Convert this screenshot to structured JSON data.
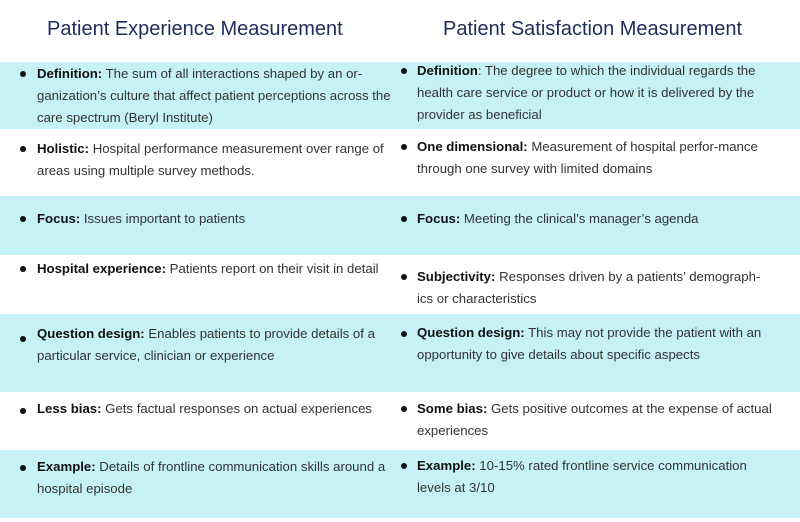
{
  "titles": {
    "left": "Patient Experience Measurement",
    "right": "Patient Satisfaction Measurement"
  },
  "rows": [
    {
      "left": {
        "term": "Definition:",
        "text": " The sum of all interactions shaped by an or-ganization’s culture that affect patient perceptions across the care spectrum (Beryl Institute)"
      },
      "right": {
        "term": "Definition",
        "text": ": The degree to which the individual regards the health care service or product or how it is delivered by the provider as beneficial"
      }
    },
    {
      "left": {
        "term": "Holistic:",
        "text": " Hospital performance measurement over range of areas using multiple survey methods."
      },
      "right": {
        "term": "One dimensional:",
        "text": " Measurement of hospital perfor-mance through one survey with limited domains"
      }
    },
    {
      "left": {
        "term": "Focus:",
        "text": " Issues important to patients"
      },
      "right": {
        "term": "Focus:",
        "text": " Meeting the clinical’s manager’s agenda"
      }
    },
    {
      "left": {
        "term": "Hospital experience:",
        "text": " Patients report on their visit in detail"
      },
      "right": {
        "term": "Subjectivity:",
        "text": " Responses driven by a patients’ demograph-ics or characteristics"
      }
    },
    {
      "left": {
        "term": "Question design:",
        "text": " Enables patients to provide details of a particular service, clinician or experience"
      },
      "right": {
        "term": "Question design:",
        "text": " This may not provide the patient with an opportunity to give details about specific aspects"
      }
    },
    {
      "left": {
        "term": "Less bias:",
        "text": " Gets factual responses on actual experiences"
      },
      "right": {
        "term": "Some bias:",
        "text": " Gets positive outcomes at the expense of actual experiences"
      }
    },
    {
      "left": {
        "term": "Example:",
        "text": " Details of frontline communication skills around a hospital episode"
      },
      "right": {
        "term": "Example:",
        "text": " 10-15% rated frontline service communication levels at 3/10"
      }
    }
  ]
}
